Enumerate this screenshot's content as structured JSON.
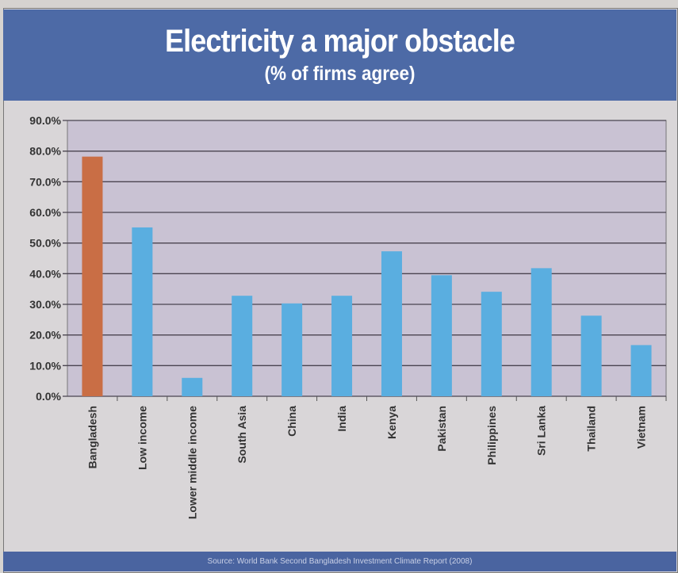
{
  "chart_data": {
    "type": "bar",
    "title": "Electricity a major obstacle",
    "subtitle": "(% of firms agree)",
    "xlabel": "",
    "ylabel": "",
    "ylim": [
      0,
      90
    ],
    "yticks": [
      "0.0%",
      "10.0%",
      "20.0%",
      "30.0%",
      "40.0%",
      "50.0%",
      "60.0%",
      "70.0%",
      "80.0%",
      "90.0%"
    ],
    "grid": true,
    "categories": [
      "Bangladesh",
      "Low income",
      "Lower middle income",
      "South Asia",
      "China",
      "India",
      "Kenya",
      "Pakistan",
      "Philippines",
      "Sri Lanka",
      "Thailand",
      "Vietnam"
    ],
    "values": [
      78.2,
      55.1,
      6.0,
      32.8,
      30.3,
      32.8,
      47.3,
      39.5,
      34.1,
      41.8,
      26.3,
      16.7
    ],
    "colors": {
      "highlight": "#c96e45",
      "default": "#5aaee0",
      "plot_bg": "#c9c2d3"
    },
    "source": "Source: World Bank Second Bangladesh Investment Climate Report (2008)"
  }
}
